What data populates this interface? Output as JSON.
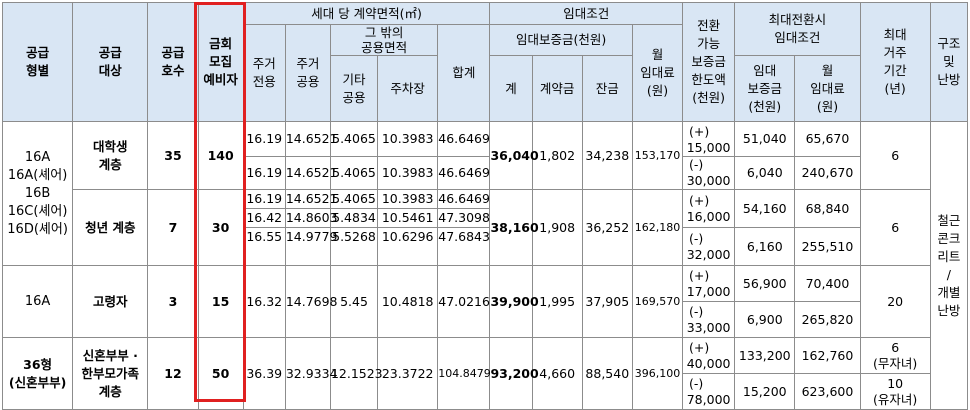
{
  "headers": {
    "type": "공급\n형별",
    "target": "공급\n대상",
    "units": "공급\n호수",
    "reserve": "금회\n모집\n예비자",
    "area_group": "세대 당 계약면적(㎡)",
    "area_excl": "주거\n전용",
    "area_common": "주거\n공용",
    "area_other_group": "그 밖의\n공용면적",
    "area_other_common": "기타\n공용",
    "area_parking": "주차장",
    "area_total": "합계",
    "lease_group": "임대조건",
    "deposit_group": "임대보증금(천원)",
    "deposit_total": "계",
    "deposit_contract": "계약금",
    "deposit_balance": "잔금",
    "monthly_rent": "월\n임대료\n(원)",
    "conversion_limit": "전환\n가능\n보증금\n한도액\n(천원)",
    "max_conv_group": "최대전환시\n임대조건",
    "max_conv_deposit": "임대\n보증금\n(천원)",
    "max_conv_rent": "월\n임대료\n(원)",
    "max_residence": "최대\n거주\n기간\n(년)",
    "structure": "구조\n및\n난방"
  },
  "groups": [
    {
      "types": "16A\n16A(셰어)\n16B\n16C(셰어)\n16D(셰어)",
      "subgroups": [
        {
          "target": "대학생\n계층",
          "units": "35",
          "reserve": "140",
          "rows": [
            [
              "16.19",
              "14.6521",
              "5.4065",
              "10.3983",
              "46.6469"
            ],
            [
              "16.19",
              "14.6521",
              "5.4065",
              "10.3983",
              "46.6469"
            ]
          ],
          "deposit_total": "36,040",
          "deposit_contract": "1,802",
          "deposit_balance": "34,238",
          "monthly_rent": "153,170",
          "conv_plus": "(+)",
          "conv_plus_amt": "15,000",
          "conv_minus": "(-)",
          "conv_minus_amt": "30,000",
          "max_plus_deposit": "51,040",
          "max_plus_rent": "65,670",
          "max_minus_deposit": "6,040",
          "max_minus_rent": "240,670",
          "residence": "6"
        },
        {
          "target": "청년 계층",
          "units": "7",
          "reserve": "30",
          "rows": [
            [
              "16.19",
              "14.6521",
              "5.4065",
              "10.3983",
              "46.6469"
            ],
            [
              "16.42",
              "14.8603",
              "5.4834",
              "10.5461",
              "47.3098"
            ],
            [
              "16.55",
              "14.9779",
              "5.5268",
              "10.6296",
              "47.6843"
            ]
          ],
          "deposit_total": "38,160",
          "deposit_contract": "1,908",
          "deposit_balance": "36,252",
          "monthly_rent": "162,180",
          "conv_plus": "(+)",
          "conv_plus_amt": "16,000",
          "conv_minus": "(-)",
          "conv_minus_amt": "32,000",
          "max_plus_deposit": "54,160",
          "max_plus_rent": "68,840",
          "max_minus_deposit": "6,160",
          "max_minus_rent": "255,510",
          "residence": "6"
        }
      ]
    },
    {
      "types": "16A",
      "target": "고령자",
      "units": "3",
      "reserve": "15",
      "rows": [
        [
          "16.32",
          "14.7698",
          "5.45",
          "10.4818",
          "47.0216"
        ]
      ],
      "deposit_total": "39,900",
      "deposit_contract": "1,995",
      "deposit_balance": "37,905",
      "monthly_rent": "169,570",
      "conv_plus": "(+)",
      "conv_plus_amt": "17,000",
      "conv_minus": "(-)",
      "conv_minus_amt": "33,000",
      "max_plus_deposit": "56,900",
      "max_plus_rent": "70,400",
      "max_minus_deposit": "6,900",
      "max_minus_rent": "265,820",
      "residence": "20"
    },
    {
      "types": "36형\n(신혼부부)",
      "target": "신혼부부 ·\n한부모가족\n계층",
      "units": "12",
      "reserve": "50",
      "rows": [
        [
          "36.39",
          "32.9334",
          "12.1523",
          "23.3722",
          "104.8479"
        ]
      ],
      "deposit_total": "93,200",
      "deposit_contract": "4,660",
      "deposit_balance": "88,540",
      "monthly_rent": "396,100",
      "conv_plus": "(+)",
      "conv_plus_amt": "40,000",
      "conv_minus": "(-)",
      "conv_minus_amt": "78,000",
      "max_plus_deposit": "133,200",
      "max_plus_rent": "162,760",
      "max_minus_deposit": "15,200",
      "max_minus_rent": "623,600",
      "residence_a": "6\n(무자녀)",
      "residence_b": "10\n(유자녀)"
    }
  ],
  "structure_value": "철근\n콘크\n리트\n/\n개별\n난방"
}
